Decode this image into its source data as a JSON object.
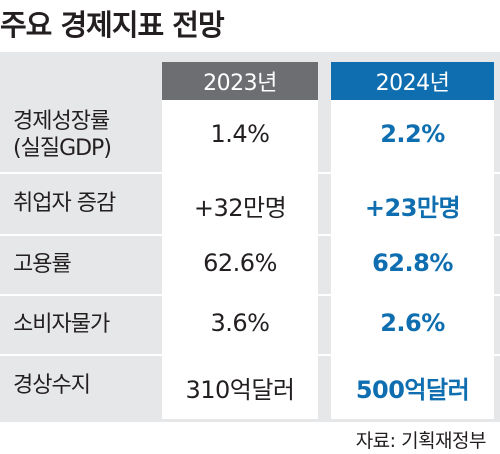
{
  "title": "주요 경제지표 전망",
  "columns": [
    "2023년",
    "2024년"
  ],
  "rows": [
    {
      "label": [
        "경제성장률",
        "(실질GDP)"
      ],
      "v2023": "1.4%",
      "v2024": "2.2%"
    },
    {
      "label": [
        "취업자 증감"
      ],
      "v2023": "+32만명",
      "v2024": "+23만명"
    },
    {
      "label": [
        "고용률"
      ],
      "v2023": "62.6%",
      "v2024": "62.8%"
    },
    {
      "label": [
        "소비자물가"
      ],
      "v2023": "3.6%",
      "v2024": "2.6%"
    },
    {
      "label": [
        "경상수지"
      ],
      "v2023": "310억달러",
      "v2024": "500억달러"
    }
  ],
  "source": "자료: 기획재정부",
  "colors": {
    "panel": "#e6e7e8",
    "header2023": "#6d6e71",
    "header2024": "#0e6eb0",
    "value2024": "#0e6eb0"
  }
}
